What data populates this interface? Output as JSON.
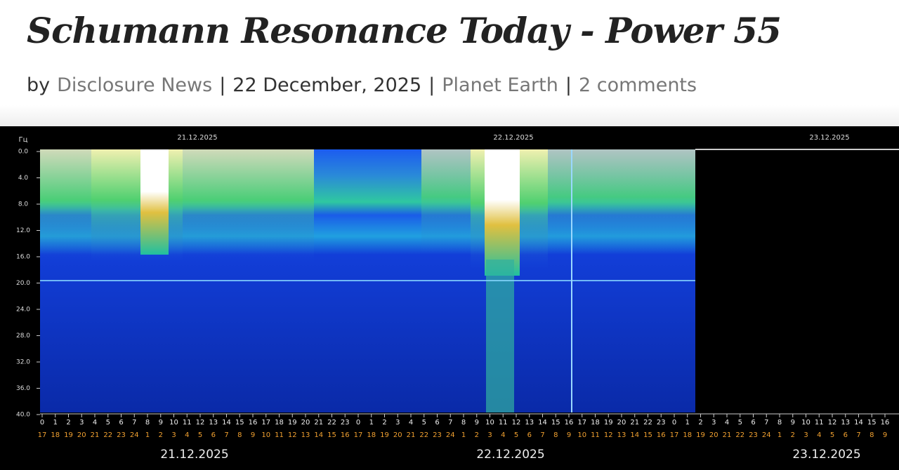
{
  "header": {
    "title": "Schumann Resonance Today - Power 55",
    "byline": {
      "prefix": "by",
      "author": "Disclosure News",
      "date": "22 December, 2025",
      "category": "Planet Earth",
      "comments": "2 comments",
      "separator": "|"
    }
  },
  "spectrogram": {
    "unit": "Гц",
    "y_labels": [
      "0.0",
      "4.0",
      "8.0",
      "12.0",
      "16.0",
      "20.0",
      "24.0",
      "28.0",
      "32.0",
      "36.0",
      "40.0"
    ],
    "top_dates": [
      "21.12.2025",
      "22.12.2025",
      "23.12.2025"
    ],
    "hours_utc": [
      0,
      1,
      2,
      3,
      4,
      5,
      6,
      7,
      8,
      9,
      10,
      11,
      12,
      13,
      14,
      15,
      16,
      17,
      18,
      19,
      20,
      21,
      22,
      23,
      0,
      1,
      2,
      3,
      4,
      5,
      6,
      7,
      8,
      9,
      10,
      11,
      12,
      13,
      14,
      15,
      16,
      17,
      18,
      19,
      20,
      21,
      22,
      23,
      0,
      1,
      2,
      3,
      4,
      5,
      6,
      7,
      8,
      9,
      10,
      11,
      12,
      13,
      14,
      15,
      16
    ],
    "hours_local": [
      17,
      18,
      19,
      20,
      21,
      22,
      23,
      24,
      1,
      2,
      3,
      4,
      5,
      6,
      7,
      8,
      9,
      10,
      11,
      12,
      13,
      14,
      15,
      16,
      17,
      18,
      19,
      20,
      21,
      22,
      23,
      24,
      1,
      2,
      3,
      4,
      5,
      6,
      7,
      8,
      9,
      10,
      11,
      12,
      13,
      14,
      15,
      16,
      17,
      18,
      19,
      20,
      21,
      22,
      23,
      24,
      1,
      2,
      3,
      4,
      5,
      6,
      7,
      8,
      9
    ],
    "bottom_dates": [
      "21.12.2025",
      "22.12.2025",
      "23.12.2025"
    ]
  }
}
